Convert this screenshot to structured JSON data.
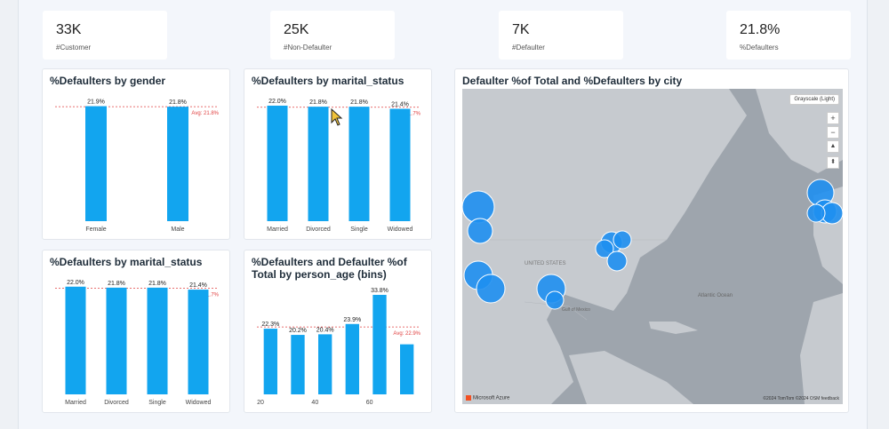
{
  "kpis": [
    {
      "value": "33K",
      "label": "#Customer"
    },
    {
      "value": "25K",
      "label": "#Non-Defaulter"
    },
    {
      "value": "7K",
      "label": "#Defaulter"
    },
    {
      "value": "21.8%",
      "label": "%Defaulters"
    }
  ],
  "colors": {
    "bar": "#12a5ef",
    "avg_line": "#e04040",
    "bubble": "#1e8ff0"
  },
  "map": {
    "title": "Defaulter %of Total and %Defaulters by city",
    "style_label": "Grayscale (Light)",
    "zoom_in": "+",
    "zoom_out": "−",
    "provider": "Microsoft Azure",
    "copyright": "©2024 TomTom ©2024 OSM feedback",
    "labels": {
      "united_states": "UNITED STATES",
      "atlantic": "Atlantic Ocean",
      "gulf": "Gulf of Mexico"
    }
  },
  "chart_data": [
    {
      "type": "bar",
      "title": "%Defaulters by gender",
      "categories": [
        "Female",
        "Male"
      ],
      "values": [
        21.9,
        21.8
      ],
      "data_labels": [
        "21.9%",
        "21.8%"
      ],
      "avg_label": "Avg: 21.8%",
      "avg": 21.8,
      "ylim": [
        0,
        22.5
      ]
    },
    {
      "type": "bar",
      "title": "%Defaulters by marital_status",
      "categories": [
        "Married",
        "Divorced",
        "Single",
        "Widowed"
      ],
      "values": [
        22.0,
        21.8,
        21.8,
        21.4
      ],
      "data_labels": [
        "22.0%",
        "21.8%",
        "21.8%",
        "21.4%"
      ],
      "avg_label": "Avg: 21.7%",
      "avg": 21.7,
      "ylim": [
        0,
        22.5
      ]
    },
    {
      "type": "bar",
      "title": "%Defaulters by marital_status",
      "categories": [
        "Married",
        "Divorced",
        "Single",
        "Widowed"
      ],
      "values": [
        22.0,
        21.8,
        21.8,
        21.4
      ],
      "data_labels": [
        "22.0%",
        "21.8%",
        "21.8%",
        "21.4%"
      ],
      "avg_label": "Avg: 21.7%",
      "avg": 21.7,
      "ylim": [
        0,
        22.5
      ]
    },
    {
      "type": "bar",
      "title": "%Defaulters and Defaulter %of Total by person_age (bins)",
      "categories": [
        "20",
        "30",
        "40",
        "50",
        "60",
        "70"
      ],
      "values": [
        22.3,
        20.2,
        20.4,
        23.9,
        33.8,
        17.0
      ],
      "data_labels": [
        "22.3%",
        "20.2%",
        "20.4%",
        "23.9%",
        "33.8%",
        ""
      ],
      "xticks": [
        "20",
        "",
        "40",
        "",
        "60",
        ""
      ],
      "avg_label": "Avg: 22.9%",
      "avg": 22.9,
      "ylim": [
        0,
        35
      ]
    }
  ]
}
